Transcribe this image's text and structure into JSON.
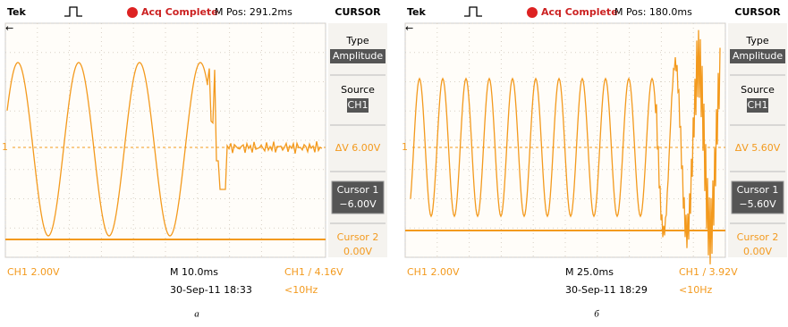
{
  "panels": [
    {
      "header": {
        "brand": "Tek",
        "status": "Acq Complete",
        "position": "M Pos: 291.2ms"
      },
      "menu": {
        "title": "CURSOR",
        "type_label": "Type",
        "type_value": "Amplitude",
        "source_label": "Source",
        "source_value": "CH1",
        "delta": "ΔV 6.00V",
        "cursor1_label": "Cursor 1",
        "cursor1_value": "−6.00V",
        "cursor2_label": "Cursor 2",
        "cursor2_value": "0.00V"
      },
      "footer": {
        "channel": "CH1  2.00V",
        "timebase": "M 10.0ms",
        "timestamp": "30-Sep-11 18:33",
        "trigger": "CH1 ∕ 4.16V",
        "frequency": "<10Hz"
      },
      "marker": "1",
      "caption": "а"
    },
    {
      "header": {
        "brand": "Tek",
        "status": "Acq Complete",
        "position": "M Pos: 180.0ms"
      },
      "menu": {
        "title": "CURSOR",
        "type_label": "Type",
        "type_value": "Amplitude",
        "source_label": "Source",
        "source_value": "CH1",
        "delta": "ΔV 5.60V",
        "cursor1_label": "Cursor 1",
        "cursor1_value": "−5.60V",
        "cursor2_label": "Cursor 2",
        "cursor2_value": "0.00V"
      },
      "footer": {
        "channel": "CH1  2.00V",
        "timebase": "M 25.0ms",
        "timestamp": "30-Sep-11 18:29",
        "trigger": "CH1 ∕ 3.92V",
        "frequency": "<10Hz"
      },
      "marker": "1",
      "caption": "б"
    }
  ]
}
